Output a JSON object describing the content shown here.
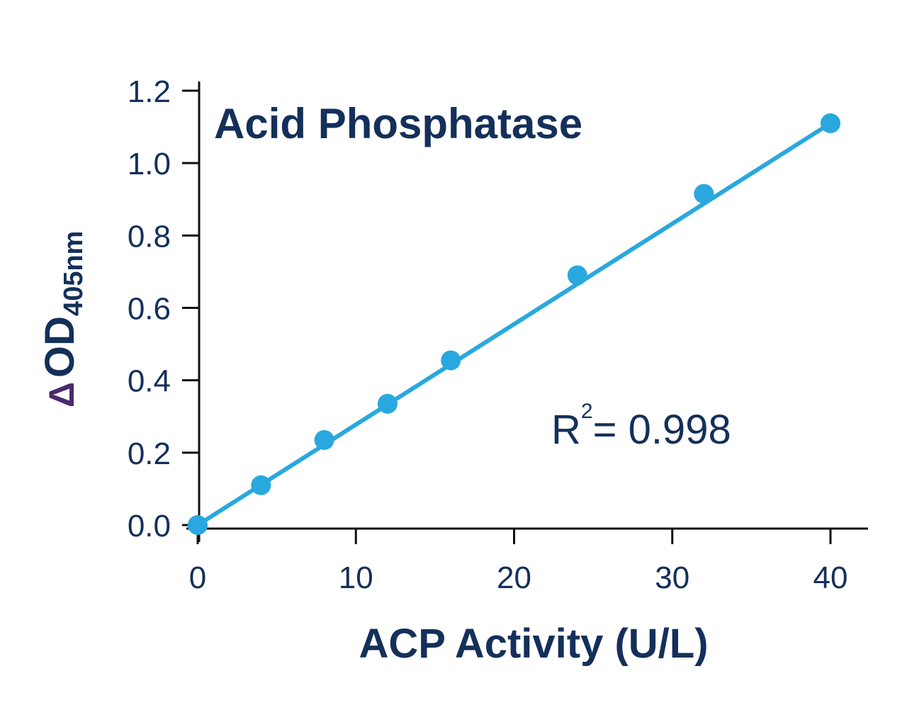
{
  "chart_data": {
    "type": "scatter",
    "title": "Acid Phosphatase",
    "xlabel": "ACP Activity (U/L)",
    "ylabel": {
      "delta": "Δ",
      "main": "OD",
      "subscript": "405nm"
    },
    "xlim": [
      0,
      40
    ],
    "ylim": [
      0,
      1.2
    ],
    "x_ticks": [
      0,
      10,
      20,
      30,
      40
    ],
    "x_tick_labels": [
      "0",
      "10",
      "20",
      "30",
      "40"
    ],
    "y_ticks": [
      0,
      0.2,
      0.4,
      0.6,
      0.8,
      1.0,
      1.2
    ],
    "y_tick_labels": [
      "0.0",
      "0.2",
      "0.4",
      "0.6",
      "0.8",
      "1.0",
      "1.2"
    ],
    "series": [
      {
        "x": [
          0,
          4,
          8,
          12,
          16,
          24,
          32,
          40
        ],
        "y": [
          0.0,
          0.11,
          0.235,
          0.335,
          0.455,
          0.69,
          0.915,
          1.11
        ],
        "color": "#29a8df"
      }
    ],
    "fit_line": {
      "x": [
        0,
        40
      ],
      "y": [
        0.0,
        1.11
      ],
      "color": "#29a8df"
    },
    "annotation": {
      "label": "R",
      "superscript": "2",
      "value": "= 0.998"
    },
    "grid": false,
    "legend": "none"
  }
}
